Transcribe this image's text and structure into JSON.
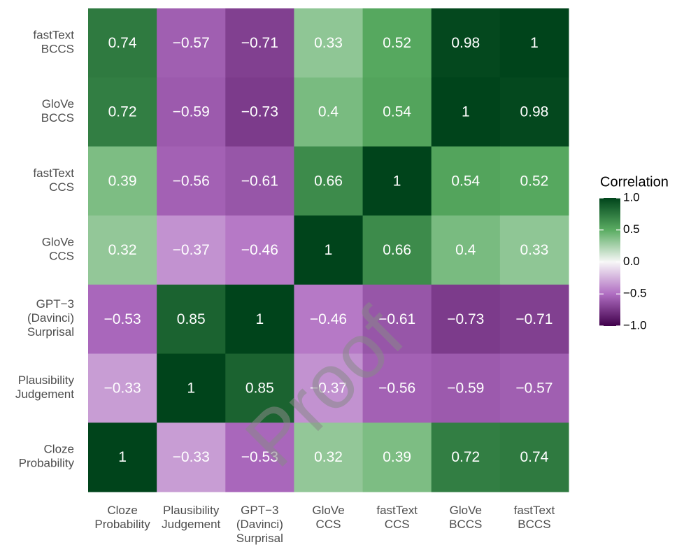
{
  "chart_data": {
    "type": "heatmap",
    "rows": [
      [
        "fastText",
        "BCCS"
      ],
      [
        "GloVe",
        "BCCS"
      ],
      [
        "fastText",
        "CCS"
      ],
      [
        "GloVe",
        "CCS"
      ],
      [
        "GPT−3",
        "(Davinci)",
        "Surprisal"
      ],
      [
        "Plausibility",
        "Judgement"
      ],
      [
        "Cloze",
        "Probability"
      ]
    ],
    "columns": [
      [
        "Cloze",
        "Probability"
      ],
      [
        "Plausibility",
        "Judgement"
      ],
      [
        "GPT−3",
        "(Davinci)",
        "Surprisal"
      ],
      [
        "GloVe",
        "CCS"
      ],
      [
        "fastText",
        "CCS"
      ],
      [
        "GloVe",
        "BCCS"
      ],
      [
        "fastText",
        "BCCS"
      ]
    ],
    "values": [
      [
        0.74,
        -0.57,
        -0.71,
        0.33,
        0.52,
        0.98,
        1
      ],
      [
        0.72,
        -0.59,
        -0.73,
        0.4,
        0.54,
        1,
        0.98
      ],
      [
        0.39,
        -0.56,
        -0.61,
        0.66,
        1,
        0.54,
        0.52
      ],
      [
        0.32,
        -0.37,
        -0.46,
        1,
        0.66,
        0.4,
        0.33
      ],
      [
        -0.53,
        0.85,
        1,
        -0.46,
        -0.61,
        -0.73,
        -0.71
      ],
      [
        -0.33,
        1,
        0.85,
        -0.37,
        -0.56,
        -0.59,
        -0.57
      ],
      [
        1,
        -0.33,
        -0.53,
        0.32,
        0.39,
        0.72,
        0.74
      ]
    ],
    "value_labels": [
      [
        "0.74",
        "−0.57",
        "−0.71",
        "0.33",
        "0.52",
        "0.98",
        "1"
      ],
      [
        "0.72",
        "−0.59",
        "−0.73",
        "0.4",
        "0.54",
        "1",
        "0.98"
      ],
      [
        "0.39",
        "−0.56",
        "−0.61",
        "0.66",
        "1",
        "0.54",
        "0.52"
      ],
      [
        "0.32",
        "−0.37",
        "−0.46",
        "1",
        "0.66",
        "0.4",
        "0.33"
      ],
      [
        "−0.53",
        "0.85",
        "1",
        "−0.46",
        "−0.61",
        "−0.73",
        "−0.71"
      ],
      [
        "−0.33",
        "1",
        "0.85",
        "−0.37",
        "−0.56",
        "−0.59",
        "−0.57"
      ],
      [
        "1",
        "−0.33",
        "−0.53",
        "0.32",
        "0.39",
        "0.72",
        "0.74"
      ]
    ],
    "legend_title": "Correlation",
    "clim": [
      -1,
      1
    ],
    "color_stops": [
      [
        -1,
        "#40004b"
      ],
      [
        -0.5,
        "#b06ec2"
      ],
      [
        0,
        "#f7f7f7"
      ],
      [
        0.5,
        "#5aac62"
      ],
      [
        1,
        "#00441b"
      ]
    ],
    "legend_ticks": [
      {
        "value": 1,
        "label": "1.0"
      },
      {
        "value": 0.5,
        "label": "0.5"
      },
      {
        "value": 0,
        "label": "0.0"
      },
      {
        "value": -0.5,
        "label": "−0.5"
      },
      {
        "value": -1,
        "label": "−1.0"
      }
    ],
    "watermark": "Proof"
  }
}
